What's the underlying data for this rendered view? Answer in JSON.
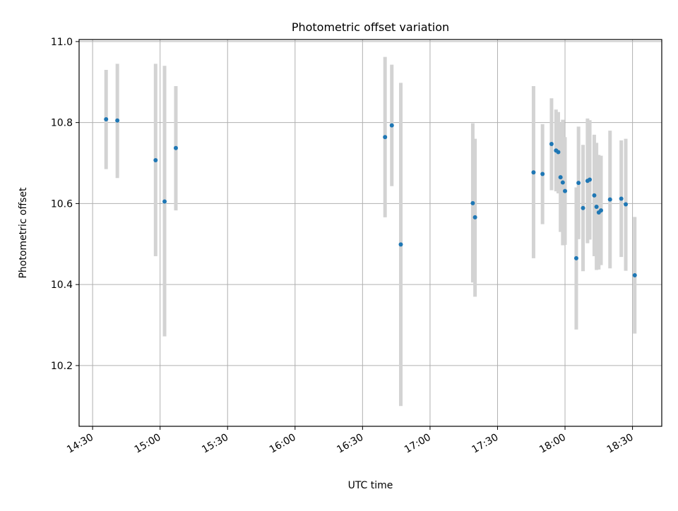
{
  "chart_data": {
    "type": "scatter",
    "title": "Photometric offset variation",
    "xlabel": "UTC time",
    "ylabel": "Photometric offset",
    "xlim": [
      "14:24",
      "18:43"
    ],
    "ylim": [
      10.05,
      11.005
    ],
    "grid": true,
    "x_ticks": [
      "14:30",
      "15:00",
      "15:30",
      "16:00",
      "16:30",
      "17:00",
      "17:30",
      "18:00",
      "18:30"
    ],
    "y_ticks": [
      10.2,
      10.4,
      10.6,
      10.8,
      11.0
    ],
    "y_tick_labels": [
      "10.2",
      "10.4",
      "10.6",
      "10.8",
      "11.0"
    ],
    "colors": {
      "points": "#1f77b4",
      "errorbars": "#d3d3d3",
      "grid": "#b0b0b0"
    },
    "points": [
      {
        "x": "14:36",
        "y": 10.808,
        "ylo": 10.685,
        "yhi": 10.93
      },
      {
        "x": "14:41",
        "y": 10.805,
        "ylo": 10.663,
        "yhi": 10.945
      },
      {
        "x": "14:58",
        "y": 10.707,
        "ylo": 10.47,
        "yhi": 10.945
      },
      {
        "x": "15:02",
        "y": 10.605,
        "ylo": 10.272,
        "yhi": 10.94
      },
      {
        "x": "15:07",
        "y": 10.737,
        "ylo": 10.583,
        "yhi": 10.89
      },
      {
        "x": "16:40",
        "y": 10.764,
        "ylo": 10.566,
        "yhi": 10.962
      },
      {
        "x": "16:43",
        "y": 10.793,
        "ylo": 10.643,
        "yhi": 10.943
      },
      {
        "x": "16:47",
        "y": 10.499,
        "ylo": 10.1,
        "yhi": 10.898
      },
      {
        "x": "17:19",
        "y": 10.601,
        "ylo": 10.405,
        "yhi": 10.798
      },
      {
        "x": "17:20",
        "y": 10.566,
        "ylo": 10.37,
        "yhi": 10.76
      },
      {
        "x": "17:46",
        "y": 10.677,
        "ylo": 10.465,
        "yhi": 10.89
      },
      {
        "x": "17:50",
        "y": 10.673,
        "ylo": 10.549,
        "yhi": 10.796
      },
      {
        "x": "17:54",
        "y": 10.747,
        "ylo": 10.633,
        "yhi": 10.86
      },
      {
        "x": "17:56",
        "y": 10.731,
        "ylo": 10.63,
        "yhi": 10.832
      },
      {
        "x": "17:57",
        "y": 10.727,
        "ylo": 10.625,
        "yhi": 10.826
      },
      {
        "x": "17:58",
        "y": 10.665,
        "ylo": 10.53,
        "yhi": 10.8
      },
      {
        "x": "17:59",
        "y": 10.652,
        "ylo": 10.497,
        "yhi": 10.807
      },
      {
        "x": "18:00",
        "y": 10.631,
        "ylo": 10.498,
        "yhi": 10.764
      },
      {
        "x": "18:05",
        "y": 10.465,
        "ylo": 10.289,
        "yhi": 10.64
      },
      {
        "x": "18:06",
        "y": 10.651,
        "ylo": 10.512,
        "yhi": 10.79
      },
      {
        "x": "18:08",
        "y": 10.589,
        "ylo": 10.433,
        "yhi": 10.745
      },
      {
        "x": "18:10",
        "y": 10.656,
        "ylo": 10.502,
        "yhi": 10.81
      },
      {
        "x": "18:11",
        "y": 10.659,
        "ylo": 10.511,
        "yhi": 10.806
      },
      {
        "x": "18:13",
        "y": 10.62,
        "ylo": 10.47,
        "yhi": 10.77
      },
      {
        "x": "18:14",
        "y": 10.592,
        "ylo": 10.436,
        "yhi": 10.75
      },
      {
        "x": "18:15",
        "y": 10.578,
        "ylo": 10.437,
        "yhi": 10.72
      },
      {
        "x": "18:16",
        "y": 10.583,
        "ylo": 10.448,
        "yhi": 10.718
      },
      {
        "x": "18:20",
        "y": 10.61,
        "ylo": 10.44,
        "yhi": 10.78
      },
      {
        "x": "18:25",
        "y": 10.612,
        "ylo": 10.468,
        "yhi": 10.756
      },
      {
        "x": "18:27",
        "y": 10.598,
        "ylo": 10.434,
        "yhi": 10.76
      },
      {
        "x": "18:31",
        "y": 10.423,
        "ylo": 10.279,
        "yhi": 10.567
      }
    ]
  }
}
